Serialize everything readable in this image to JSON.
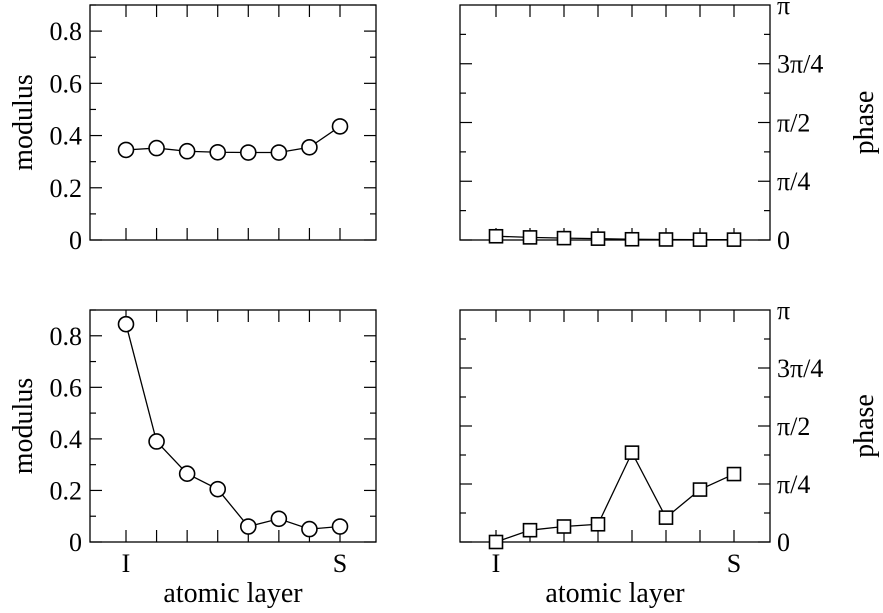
{
  "chart_data": [
    {
      "type": "line",
      "panel": "top-left",
      "ylabel": "modulus",
      "xlabel": "",
      "ylim": [
        0,
        0.9
      ],
      "yticks": [
        "0",
        "0.2",
        "0.4",
        "0.6",
        "0.8"
      ],
      "ytick_values": [
        0,
        0.2,
        0.4,
        0.6,
        0.8
      ],
      "x": [
        1,
        2,
        3,
        4,
        5,
        6,
        7,
        8
      ],
      "xticklabels": [],
      "marker": "circle",
      "series": [
        {
          "values": [
            0.345,
            0.352,
            0.34,
            0.336,
            0.335,
            0.335,
            0.355,
            0.435
          ]
        }
      ]
    },
    {
      "type": "line",
      "panel": "top-right",
      "ylabel": "phase",
      "xlabel": "",
      "ylim": [
        0,
        3.14159
      ],
      "yaxis_side": "right",
      "yticks": [
        "0",
        "π/4",
        "π/2",
        "3π/4",
        "π"
      ],
      "ytick_values": [
        0,
        0.7854,
        1.5708,
        2.3562,
        3.14159
      ],
      "x": [
        1,
        2,
        3,
        4,
        5,
        6,
        7,
        8
      ],
      "xticklabels": [],
      "marker": "square",
      "series": [
        {
          "values": [
            0.05,
            0.035,
            0.025,
            0.018,
            0.01,
            0.007,
            0.005,
            0.005
          ]
        }
      ]
    },
    {
      "type": "line",
      "panel": "bottom-left",
      "ylabel": "modulus",
      "xlabel": "atomic layer",
      "ylim": [
        0,
        0.9
      ],
      "yticks": [
        "0",
        "0.2",
        "0.4",
        "0.6",
        "0.8"
      ],
      "ytick_values": [
        0,
        0.2,
        0.4,
        0.6,
        0.8
      ],
      "x": [
        1,
        2,
        3,
        4,
        5,
        6,
        7,
        8
      ],
      "xticklabels": [
        {
          "x": 1,
          "label": "I"
        },
        {
          "x": 8,
          "label": "S"
        }
      ],
      "marker": "circle",
      "series": [
        {
          "values": [
            0.845,
            0.39,
            0.265,
            0.205,
            0.06,
            0.09,
            0.05,
            0.06
          ]
        }
      ]
    },
    {
      "type": "line",
      "panel": "bottom-right",
      "ylabel": "phase",
      "xlabel": "atomic layer",
      "ylim": [
        0,
        3.14159
      ],
      "yaxis_side": "right",
      "yticks": [
        "0",
        "π/4",
        "π/2",
        "3π/4",
        "π"
      ],
      "ytick_values": [
        0,
        0.7854,
        1.5708,
        2.3562,
        3.14159
      ],
      "x": [
        1,
        2,
        3,
        4,
        5,
        6,
        7,
        8
      ],
      "xticklabels": [
        {
          "x": 1,
          "label": "I"
        },
        {
          "x": 8,
          "label": "S"
        }
      ],
      "marker": "square",
      "series": [
        {
          "values": [
            0.0,
            0.16,
            0.21,
            0.24,
            1.21,
            0.33,
            0.71,
            0.92
          ]
        }
      ]
    }
  ]
}
